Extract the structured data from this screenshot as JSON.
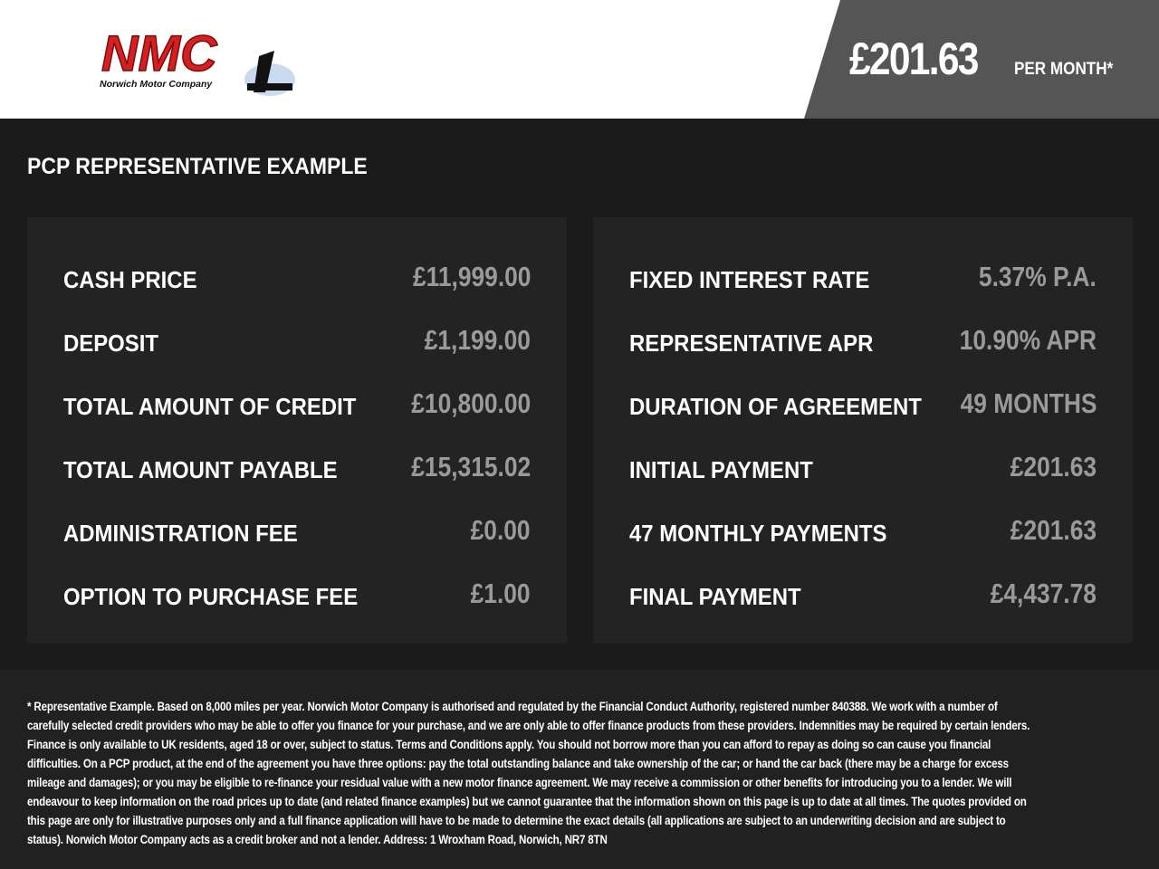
{
  "header": {
    "logo_text": "NMC",
    "logo_subtitle": "Norwich Motor Company",
    "price": "£201.63",
    "per_month": "PER MONTH*"
  },
  "title": "PCP REPRESENTATIVE EXAMPLE",
  "left_panel": [
    {
      "label": "CASH PRICE",
      "value": "£11,999.00"
    },
    {
      "label": "DEPOSIT",
      "value": "£1,199.00"
    },
    {
      "label": "TOTAL AMOUNT OF CREDIT",
      "value": "£10,800.00"
    },
    {
      "label": "TOTAL AMOUNT PAYABLE",
      "value": "£15,315.02"
    },
    {
      "label": "ADMINISTRATION FEE",
      "value": "£0.00"
    },
    {
      "label": "OPTION TO PURCHASE FEE",
      "value": "£1.00"
    }
  ],
  "right_panel": [
    {
      "label": "FIXED INTEREST RATE",
      "value": "5.37% P.A."
    },
    {
      "label": "REPRESENTATIVE APR",
      "value": "10.90% APR"
    },
    {
      "label": "DURATION OF AGREEMENT",
      "value": "49 MONTHS"
    },
    {
      "label": "INITIAL PAYMENT",
      "value": "£201.63"
    },
    {
      "label": "47 MONTHLY PAYMENTS",
      "value": "£201.63"
    },
    {
      "label": "FINAL PAYMENT",
      "value": "£4,437.78"
    }
  ],
  "disclaimer": "* Representative Example. Based on 8,000 miles per year. Norwich Motor Company is authorised and regulated by the Financial Conduct Authority, registered number 840388. We work with a number of carefully selected credit providers who may be able to offer you finance for your purchase, and we are only able to offer finance products from these providers. Indemnities may be required by certain lenders. Finance is only available to UK residents, aged 18 or over, subject to status. Terms and Conditions apply. You should not borrow more than you can afford to repay as doing so can cause you financial difficulties. On a PCP product, at the end of the agreement you have three options: pay the total outstanding balance and take ownership of the car; or hand the car back (there may be a charge for excess mileage and damages); or you may be eligible to re-finance your residual value with a new motor finance agreement. We may receive a commission or other benefits for introducing you to a lender. We will endeavour to keep information on the road prices up to date (and related finance examples) but we cannot guarantee that the information shown on this page is up to date at all times. The quotes provided on this page are only for illustrative purposes only and a full finance application will have to be made to determine the exact details (all applications are subject to an underwriting decision and are subject to status). Norwich Motor Company acts as a credit broker and not a lender. Address: 1 Wroxham Road, Norwich, NR7 8TN",
  "colors": {
    "brand_red": "#d42020",
    "value_gray": "#9a9a9a",
    "price_box": "#555555"
  }
}
